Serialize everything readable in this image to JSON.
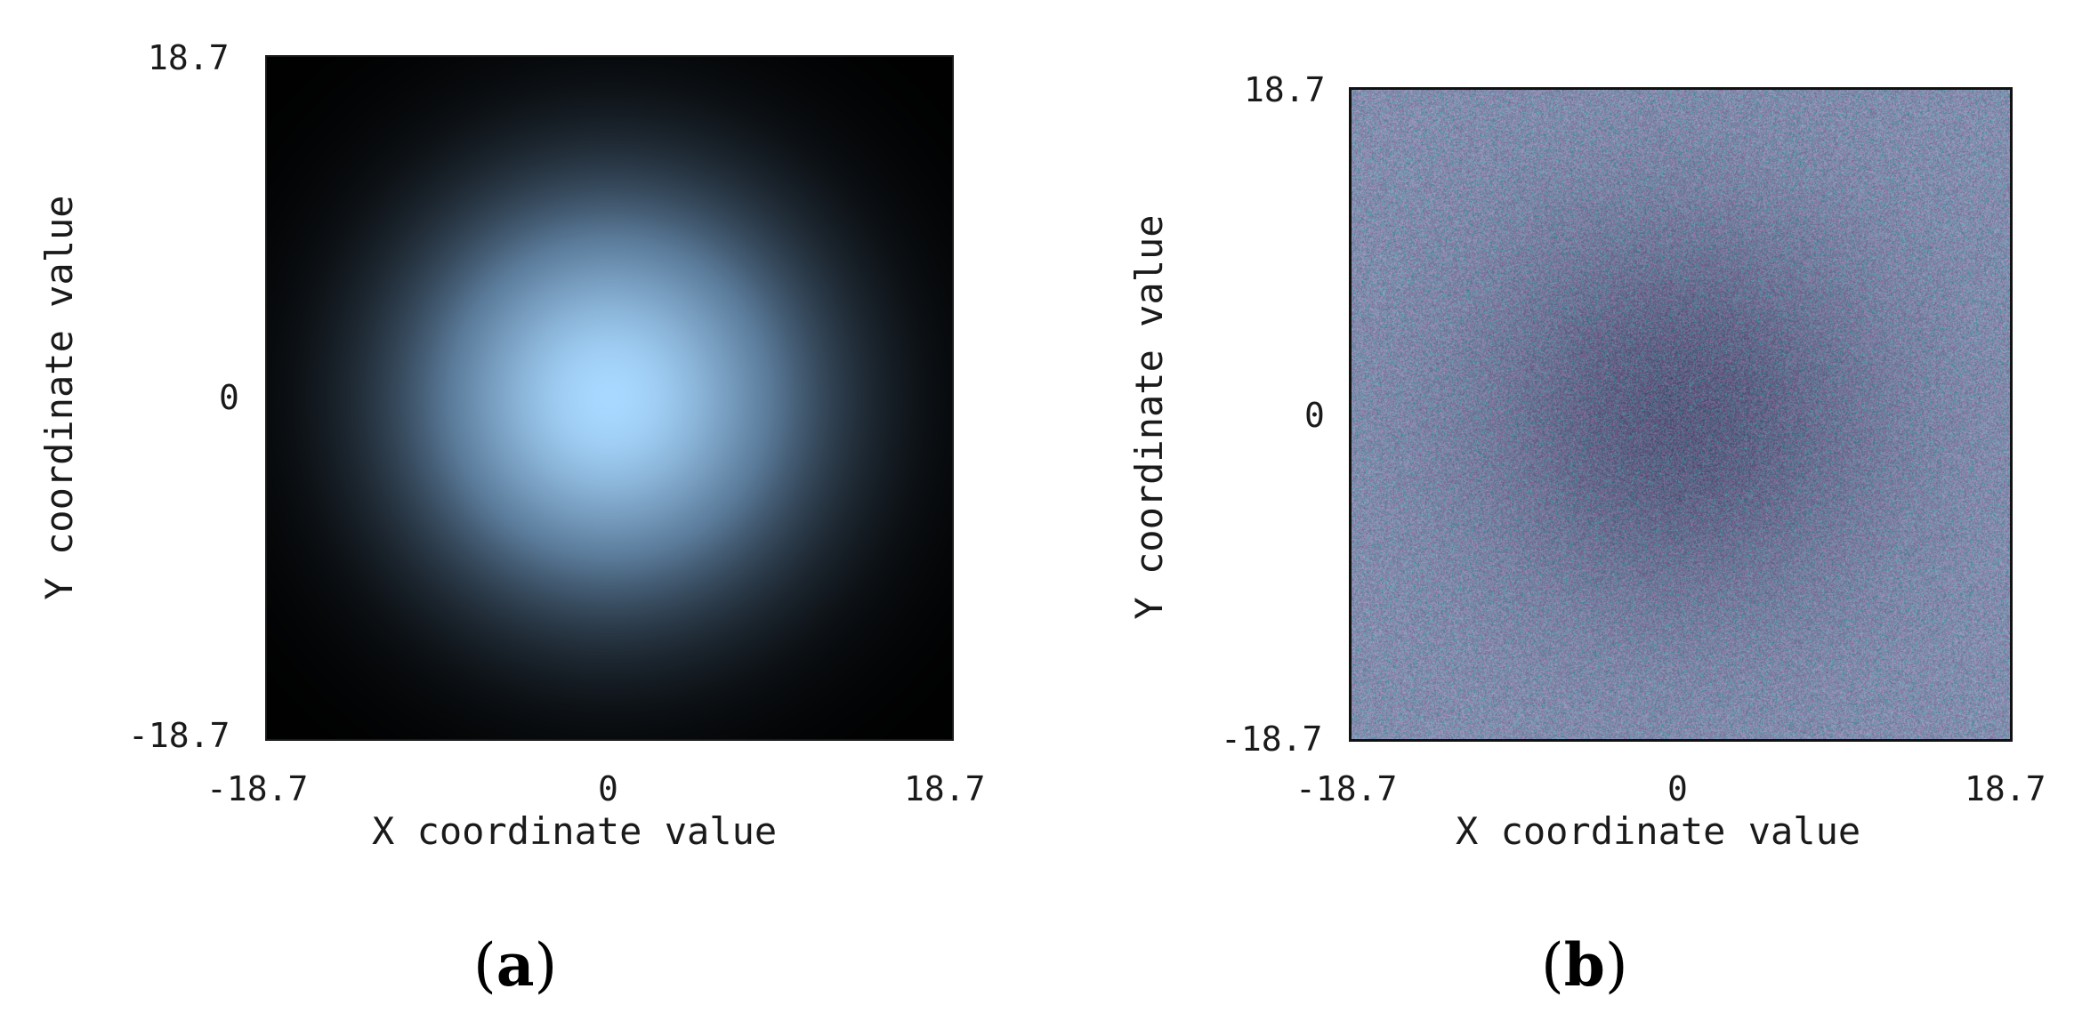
{
  "chart_data": [
    {
      "type": "heatmap",
      "panel": "a",
      "caption": "a",
      "title": "",
      "xlabel": "X coordinate value",
      "ylabel": "Y coordinate value",
      "xlim": [
        -18.7,
        18.7
      ],
      "ylim": [
        -18.7,
        18.7
      ],
      "x_ticks": [
        "-18.7",
        "0",
        "18.7"
      ],
      "y_ticks": [
        "18.7",
        "0",
        "-18.7"
      ],
      "grid": false,
      "colors": {
        "background": "#000000",
        "peak": "#a8d8ff",
        "mid": "#5a7a99"
      },
      "pattern": {
        "kind": "gaussian-spot",
        "center": [
          0,
          0
        ],
        "spread": 7.5
      }
    },
    {
      "type": "heatmap",
      "panel": "b",
      "caption": "b",
      "title": "",
      "xlabel": "X coordinate value",
      "ylabel": "Y coordinate value",
      "xlim": [
        -18.7,
        18.7
      ],
      "ylim": [
        -18.7,
        18.7
      ],
      "x_ticks": [
        "-18.7",
        "0",
        "18.7"
      ],
      "y_ticks": [
        "18.7",
        "0",
        "-18.7"
      ],
      "grid": false,
      "colors": {
        "base": "#8a8fb0",
        "dark": "#4a4468",
        "speckle_cyan": "#1aa5a0",
        "speckle_magenta": "#a05aa5"
      },
      "pattern": {
        "kind": "noisy-dark-center",
        "center": [
          0,
          0
        ],
        "spread": 8.0
      }
    }
  ]
}
